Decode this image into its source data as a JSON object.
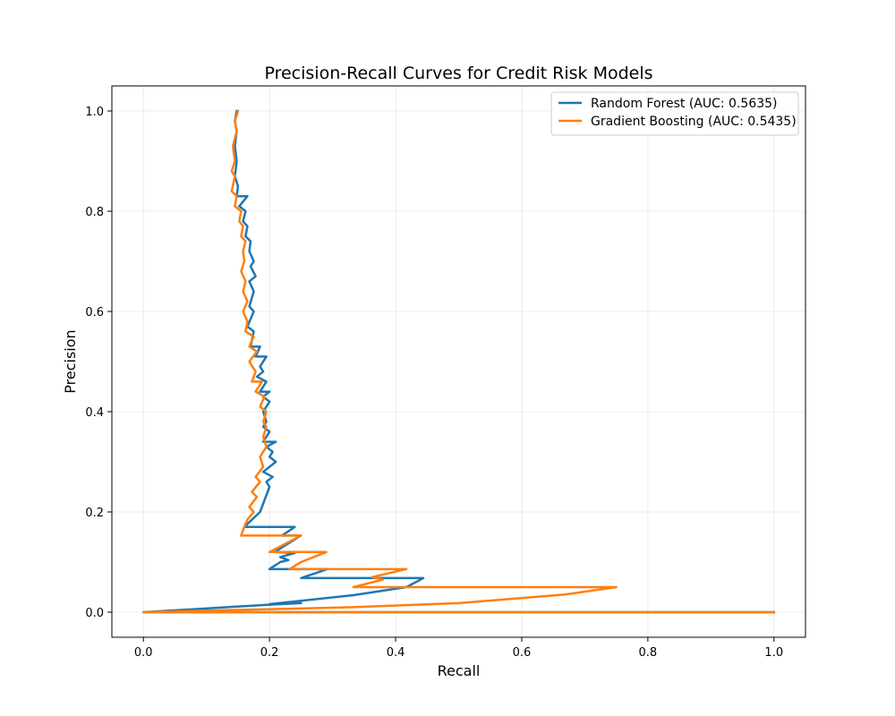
{
  "chart_data": {
    "type": "line",
    "title": "Precision-Recall Curves for Credit Risk Models",
    "xlabel": "Recall",
    "ylabel": "Precision",
    "xlim": [
      -0.05,
      1.05
    ],
    "ylim": [
      -0.05,
      1.05
    ],
    "xticks": [
      "0.0",
      "0.2",
      "0.4",
      "0.6",
      "0.8",
      "1.0"
    ],
    "yticks": [
      "0.0",
      "0.2",
      "0.4",
      "0.6",
      "0.8",
      "1.0"
    ],
    "grid": true,
    "legend_position": "top-right",
    "series": [
      {
        "name": "Random Forest (AUC: 0.5635)",
        "color": "#1f77b4",
        "points": [
          [
            1.0,
            0.0
          ],
          [
            0.0,
            0.0
          ],
          [
            0.2,
            0.015
          ],
          [
            0.25,
            0.018
          ],
          [
            0.2,
            0.016
          ],
          [
            0.333,
            0.034
          ],
          [
            0.417,
            0.05
          ],
          [
            0.444,
            0.068
          ],
          [
            0.25,
            0.068
          ],
          [
            0.292,
            0.086
          ],
          [
            0.2,
            0.086
          ],
          [
            0.217,
            0.1
          ],
          [
            0.23,
            0.104
          ],
          [
            0.217,
            0.11
          ],
          [
            0.24,
            0.118
          ],
          [
            0.208,
            0.12
          ],
          [
            0.25,
            0.153
          ],
          [
            0.22,
            0.153
          ],
          [
            0.24,
            0.17
          ],
          [
            0.16,
            0.17
          ],
          [
            0.185,
            0.2
          ],
          [
            0.2,
            0.25
          ],
          [
            0.195,
            0.26
          ],
          [
            0.205,
            0.27
          ],
          [
            0.19,
            0.28
          ],
          [
            0.2,
            0.29
          ],
          [
            0.21,
            0.3
          ],
          [
            0.2,
            0.31
          ],
          [
            0.205,
            0.32
          ],
          [
            0.195,
            0.33
          ],
          [
            0.21,
            0.34
          ],
          [
            0.19,
            0.34
          ],
          [
            0.2,
            0.36
          ],
          [
            0.19,
            0.37
          ],
          [
            0.195,
            0.38
          ],
          [
            0.19,
            0.4
          ],
          [
            0.2,
            0.42
          ],
          [
            0.19,
            0.43
          ],
          [
            0.2,
            0.44
          ],
          [
            0.185,
            0.44
          ],
          [
            0.195,
            0.46
          ],
          [
            0.18,
            0.47
          ],
          [
            0.19,
            0.48
          ],
          [
            0.185,
            0.49
          ],
          [
            0.195,
            0.51
          ],
          [
            0.178,
            0.51
          ],
          [
            0.185,
            0.53
          ],
          [
            0.17,
            0.53
          ],
          [
            0.175,
            0.56
          ],
          [
            0.165,
            0.57
          ],
          [
            0.175,
            0.6
          ],
          [
            0.168,
            0.61
          ],
          [
            0.175,
            0.64
          ],
          [
            0.168,
            0.66
          ],
          [
            0.178,
            0.67
          ],
          [
            0.17,
            0.69
          ],
          [
            0.175,
            0.7
          ],
          [
            0.168,
            0.72
          ],
          [
            0.17,
            0.74
          ],
          [
            0.162,
            0.75
          ],
          [
            0.165,
            0.77
          ],
          [
            0.158,
            0.78
          ],
          [
            0.162,
            0.8
          ],
          [
            0.152,
            0.81
          ],
          [
            0.165,
            0.83
          ],
          [
            0.148,
            0.83
          ],
          [
            0.15,
            0.85
          ],
          [
            0.145,
            0.87
          ],
          [
            0.148,
            0.9
          ],
          [
            0.145,
            0.93
          ],
          [
            0.148,
            0.96
          ],
          [
            0.145,
            0.98
          ],
          [
            0.148,
            1.0
          ]
        ]
      },
      {
        "name": "Gradient Boosting (AUC: 0.5435)",
        "color": "#ff7f0e",
        "points": [
          [
            1.0,
            0.0
          ],
          [
            0.0,
            0.0
          ],
          [
            0.333,
            0.01
          ],
          [
            0.5,
            0.018
          ],
          [
            0.667,
            0.035
          ],
          [
            0.75,
            0.05
          ],
          [
            0.333,
            0.05
          ],
          [
            0.38,
            0.065
          ],
          [
            0.363,
            0.07
          ],
          [
            0.417,
            0.086
          ],
          [
            0.232,
            0.086
          ],
          [
            0.25,
            0.1
          ],
          [
            0.29,
            0.12
          ],
          [
            0.2,
            0.12
          ],
          [
            0.25,
            0.153
          ],
          [
            0.155,
            0.153
          ],
          [
            0.16,
            0.17
          ],
          [
            0.165,
            0.185
          ],
          [
            0.175,
            0.2
          ],
          [
            0.168,
            0.21
          ],
          [
            0.18,
            0.23
          ],
          [
            0.172,
            0.24
          ],
          [
            0.185,
            0.26
          ],
          [
            0.178,
            0.27
          ],
          [
            0.19,
            0.29
          ],
          [
            0.185,
            0.31
          ],
          [
            0.195,
            0.33
          ],
          [
            0.19,
            0.35
          ],
          [
            0.195,
            0.37
          ],
          [
            0.19,
            0.38
          ],
          [
            0.195,
            0.4
          ],
          [
            0.185,
            0.41
          ],
          [
            0.192,
            0.43
          ],
          [
            0.178,
            0.44
          ],
          [
            0.188,
            0.46
          ],
          [
            0.172,
            0.46
          ],
          [
            0.178,
            0.48
          ],
          [
            0.168,
            0.5
          ],
          [
            0.18,
            0.52
          ],
          [
            0.168,
            0.53
          ],
          [
            0.175,
            0.55
          ],
          [
            0.162,
            0.56
          ],
          [
            0.165,
            0.58
          ],
          [
            0.158,
            0.6
          ],
          [
            0.165,
            0.62
          ],
          [
            0.158,
            0.64
          ],
          [
            0.162,
            0.66
          ],
          [
            0.155,
            0.68
          ],
          [
            0.16,
            0.7
          ],
          [
            0.158,
            0.72
          ],
          [
            0.162,
            0.74
          ],
          [
            0.155,
            0.75
          ],
          [
            0.158,
            0.77
          ],
          [
            0.152,
            0.78
          ],
          [
            0.155,
            0.8
          ],
          [
            0.145,
            0.81
          ],
          [
            0.148,
            0.83
          ],
          [
            0.14,
            0.84
          ],
          [
            0.145,
            0.87
          ],
          [
            0.14,
            0.88
          ],
          [
            0.145,
            0.9
          ],
          [
            0.142,
            0.93
          ],
          [
            0.148,
            0.96
          ],
          [
            0.145,
            0.98
          ],
          [
            0.15,
            1.0
          ]
        ]
      }
    ]
  }
}
